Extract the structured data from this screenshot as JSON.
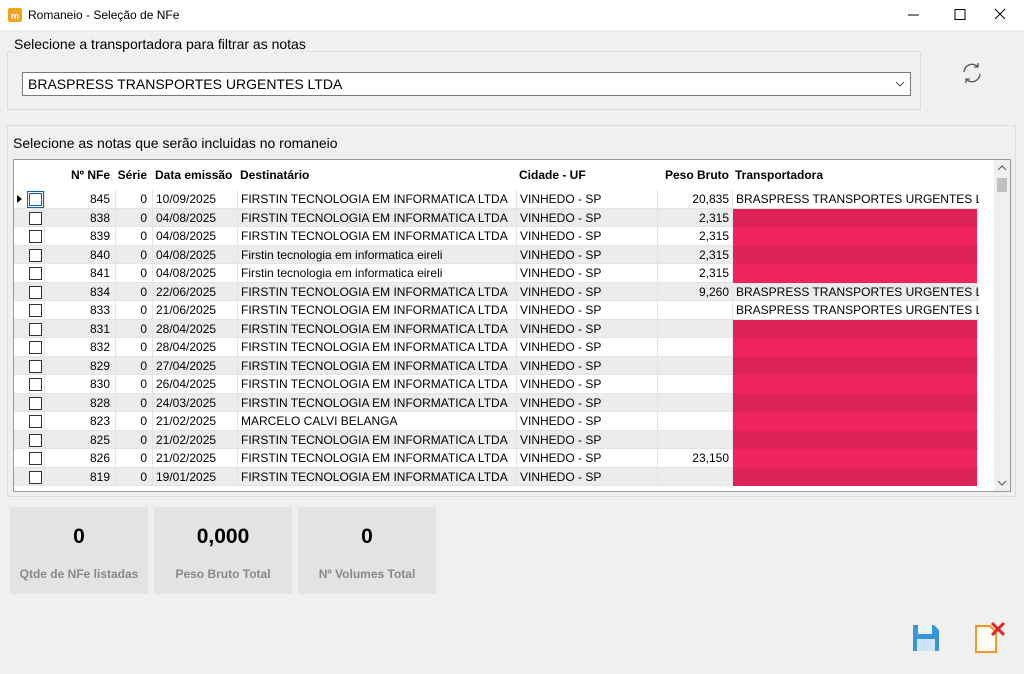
{
  "window": {
    "title": "Romaneio - Seleção de NFe"
  },
  "filter": {
    "label": "Selecione a transportadora para filtrar as notas",
    "selected": "BRASPRESS TRANSPORTES URGENTES LTDA"
  },
  "notes": {
    "label": "Selecione as notas que serão incluidas no romaneio",
    "columns": [
      "Nº NFe",
      "Série",
      "Data emissão",
      "Destinatário",
      "Cidade - UF",
      "Peso Bruto",
      "Transportadora"
    ],
    "rows": [
      [
        "845",
        "0",
        "10/09/2025",
        "FIRSTIN TECNOLOGIA EM INFORMATICA LTDA",
        "VINHEDO - SP",
        "20,835",
        "BRASPRESS TRANSPORTES URGENTES LTDA"
      ],
      [
        "838",
        "0",
        "04/08/2025",
        "FIRSTIN TECNOLOGIA EM INFORMATICA LTDA",
        "VINHEDO - SP",
        "2,315",
        null
      ],
      [
        "839",
        "0",
        "04/08/2025",
        "FIRSTIN TECNOLOGIA EM INFORMATICA LTDA",
        "VINHEDO - SP",
        "2,315",
        null
      ],
      [
        "840",
        "0",
        "04/08/2025",
        "Firstin tecnologia em informatica eireli",
        "VINHEDO - SP",
        "2,315",
        null
      ],
      [
        "841",
        "0",
        "04/08/2025",
        "Firstin tecnologia em informatica eireli",
        "VINHEDO - SP",
        "2,315",
        null
      ],
      [
        "834",
        "0",
        "22/06/2025",
        "FIRSTIN TECNOLOGIA EM INFORMATICA LTDA",
        "VINHEDO - SP",
        "9,260",
        "BRASPRESS TRANSPORTES URGENTES LTDA"
      ],
      [
        "833",
        "0",
        "21/06/2025",
        "FIRSTIN TECNOLOGIA EM INFORMATICA LTDA",
        "VINHEDO - SP",
        null,
        "BRASPRESS TRANSPORTES URGENTES LTDA"
      ],
      [
        "831",
        "0",
        "28/04/2025",
        "FIRSTIN TECNOLOGIA EM INFORMATICA LTDA",
        "VINHEDO - SP",
        null,
        null
      ],
      [
        "832",
        "0",
        "28/04/2025",
        "FIRSTIN TECNOLOGIA EM INFORMATICA LTDA",
        "VINHEDO - SP",
        null,
        null
      ],
      [
        "829",
        "0",
        "27/04/2025",
        "FIRSTIN TECNOLOGIA EM INFORMATICA LTDA",
        "VINHEDO - SP",
        null,
        null
      ],
      [
        "830",
        "0",
        "26/04/2025",
        "FIRSTIN TECNOLOGIA EM INFORMATICA LTDA",
        "VINHEDO - SP",
        null,
        null
      ],
      [
        "828",
        "0",
        "24/03/2025",
        "FIRSTIN TECNOLOGIA EM INFORMATICA LTDA",
        "VINHEDO - SP",
        null,
        null
      ],
      [
        "823",
        "0",
        "21/02/2025",
        "MARCELO CALVI BELANGA",
        "VINHEDO - SP",
        null,
        null
      ],
      [
        "825",
        "0",
        "21/02/2025",
        "FIRSTIN TECNOLOGIA EM INFORMATICA LTDA",
        "VINHEDO - SP",
        null,
        null
      ],
      [
        "826",
        "0",
        "21/02/2025",
        "FIRSTIN TECNOLOGIA EM INFORMATICA LTDA",
        "VINHEDO - SP",
        "23,150",
        null
      ],
      [
        "819",
        "0",
        "19/01/2025",
        "FIRSTIN TECNOLOGIA EM INFORMATICA LTDA",
        "VINHEDO - SP",
        null,
        null
      ]
    ]
  },
  "summary": [
    {
      "value": "0",
      "label": "Qtde de NFe listadas"
    },
    {
      "value": "0,000",
      "label": "Peso Bruto Total"
    },
    {
      "value": "0",
      "label": "Nº Volumes Total"
    }
  ]
}
